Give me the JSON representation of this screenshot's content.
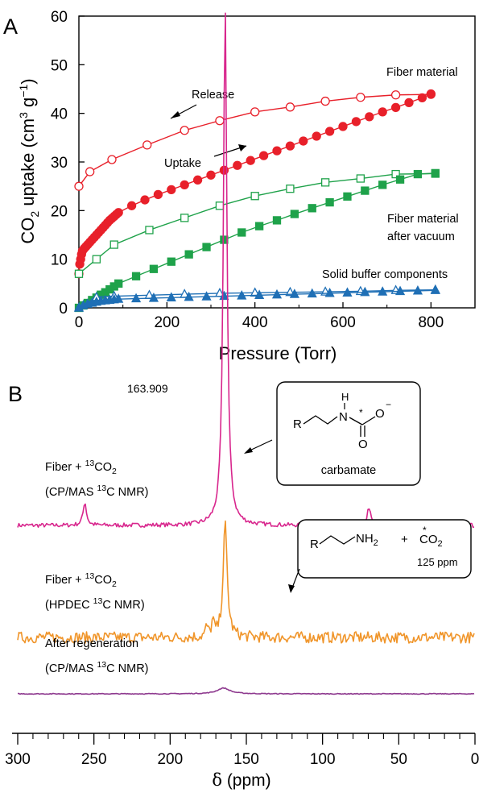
{
  "panel_a": {
    "letter": "A",
    "chart_data": {
      "type": "scatter",
      "xlabel": "Pressure (Torr)",
      "ylabel_prefix": "CO",
      "ylabel_sub": "2",
      "ylabel_mid": " uptake (cm",
      "ylabel_sup1": "3",
      "ylabel_g": " g",
      "ylabel_sup2": "−1",
      "ylabel_end": ")",
      "xlim": [
        0,
        900
      ],
      "ylim": [
        0,
        60
      ],
      "xticks": [
        0,
        200,
        400,
        600,
        800
      ],
      "yticks": [
        0,
        10,
        20,
        30,
        40,
        50,
        60
      ],
      "colors": {
        "red": "#e8202a",
        "green": "#1fa24a",
        "blue": "#1f6fb5"
      },
      "series": [
        {
          "name": "Fiber material",
          "color": "red",
          "marker": "circle",
          "filled": false,
          "curve": "release",
          "x": [
            0,
            25,
            75,
            155,
            240,
            320,
            400,
            480,
            560,
            640,
            720,
            800
          ],
          "y": [
            25,
            28,
            30.5,
            33.5,
            36.5,
            38.5,
            40.3,
            41.3,
            42.5,
            43.3,
            43.8,
            43.9
          ]
        },
        {
          "name": "Fiber material",
          "color": "red",
          "marker": "circle",
          "filled": true,
          "curve": "uptake",
          "x": [
            0,
            2,
            4,
            6,
            8,
            12,
            16,
            20,
            25,
            30,
            35,
            40,
            45,
            50,
            55,
            60,
            65,
            70,
            75,
            80,
            85,
            90,
            120,
            150,
            180,
            210,
            240,
            270,
            300,
            330,
            360,
            390,
            420,
            450,
            480,
            510,
            540,
            570,
            600,
            630,
            660,
            690,
            720,
            750,
            780,
            800
          ],
          "y": [
            7,
            9,
            10,
            11,
            11.7,
            12.2,
            12.6,
            13.0,
            13.5,
            14.0,
            14.5,
            15.0,
            15.5,
            16.0,
            16.5,
            17.0,
            17.5,
            18.0,
            18.4,
            18.8,
            19.2,
            19.6,
            21.0,
            22.2,
            23.3,
            24.3,
            25.3,
            26.3,
            27.3,
            28.3,
            29.3,
            30.3,
            31.3,
            32.3,
            33.3,
            34.3,
            35.3,
            36.3,
            37.3,
            38.3,
            39.3,
            40.3,
            41.2,
            42.2,
            43.2,
            44.0
          ]
        },
        {
          "name": "Fiber material after vacuum",
          "color": "green",
          "marker": "square",
          "filled": false,
          "curve": "release",
          "x": [
            0,
            40,
            80,
            160,
            240,
            320,
            400,
            480,
            560,
            640,
            720,
            810
          ],
          "y": [
            7,
            10,
            13,
            16,
            18.5,
            21,
            23,
            24.5,
            25.8,
            26.6,
            27.5,
            27.6
          ]
        },
        {
          "name": "Fiber material after vacuum",
          "color": "green",
          "marker": "square",
          "filled": true,
          "curve": "uptake",
          "x": [
            0,
            10,
            20,
            30,
            40,
            50,
            60,
            70,
            80,
            90,
            130,
            170,
            210,
            250,
            290,
            330,
            370,
            410,
            450,
            490,
            530,
            570,
            610,
            650,
            690,
            730,
            770,
            810
          ],
          "y": [
            0,
            0.5,
            1,
            1.6,
            2.1,
            2.7,
            3.2,
            3.8,
            4.4,
            5.0,
            6.5,
            8.0,
            9.5,
            11.0,
            12.5,
            14.0,
            15.5,
            16.8,
            18.0,
            19.3,
            20.5,
            21.7,
            22.9,
            24.1,
            25.3,
            26.4,
            27.5,
            27.7
          ]
        },
        {
          "name": "Solid buffer components",
          "color": "blue",
          "marker": "triangle",
          "filled": false,
          "curve": "release",
          "x": [
            0,
            40,
            80,
            160,
            240,
            320,
            400,
            480,
            560,
            640,
            720,
            810
          ],
          "y": [
            0,
            2.2,
            2.4,
            2.6,
            2.8,
            3.0,
            3.1,
            3.2,
            3.3,
            3.4,
            3.6,
            3.7
          ]
        },
        {
          "name": "Solid buffer components",
          "color": "blue",
          "marker": "triangle",
          "filled": true,
          "curve": "uptake",
          "x": [
            0,
            10,
            20,
            30,
            40,
            50,
            60,
            70,
            80,
            90,
            130,
            170,
            210,
            250,
            290,
            330,
            370,
            410,
            450,
            490,
            530,
            570,
            610,
            650,
            690,
            730,
            770,
            810
          ],
          "y": [
            0,
            0.5,
            0.8,
            1.0,
            1.2,
            1.4,
            1.5,
            1.6,
            1.7,
            1.8,
            1.9,
            2.0,
            2.1,
            2.2,
            2.3,
            2.4,
            2.5,
            2.6,
            2.7,
            2.8,
            2.9,
            3.0,
            3.1,
            3.2,
            3.3,
            3.4,
            3.5,
            3.6
          ]
        }
      ],
      "annotations": {
        "fiber": "Fiber material",
        "release": "Release",
        "uptake": "Uptake",
        "vacuum_1": "Fiber material",
        "vacuum_2": "after vacuum",
        "buffer": "Solid buffer components"
      }
    }
  },
  "panel_b": {
    "letter": "B",
    "chart_data": {
      "type": "line",
      "xlabel_delta": "δ",
      "xlabel_unit": " (ppm)",
      "xlim": [
        300,
        0
      ],
      "xticks": [
        300,
        250,
        200,
        150,
        100,
        50,
        0
      ],
      "xtick_labels": [
        "300",
        "250",
        "200",
        "150",
        "100",
        "50",
        "0"
      ],
      "peak_label": "163.909",
      "spectra": [
        {
          "label1_pre": "Fiber + ",
          "label1_sup": "13",
          "label1_post": "CO",
          "label1_sub": "2",
          "label2_pre": "(CP/MAS ",
          "label2_sup": "13",
          "label2_post": "C NMR)",
          "color": "#d8268d",
          "noise": 0.004,
          "peaks": [
            [
              163.9,
              1.0,
              1.4
            ],
            [
              256,
              0.045,
              1.3
            ],
            [
              69.6,
              0.035,
              1.3
            ]
          ]
        },
        {
          "label1_pre": "Fiber + ",
          "label1_sup": "13",
          "label1_post": "CO",
          "label1_sub": "2",
          "label2_pre": "(HPDEC ",
          "label2_sup": "13",
          "label2_post": "C NMR)",
          "color": "#f0952a",
          "noise": 0.05,
          "peaks": [
            [
              163.9,
              1.0,
              1.6
            ],
            [
              172,
              0.13,
              1.0
            ],
            [
              176,
              0.09,
              0.8
            ]
          ]
        },
        {
          "label1_pre": "After regeneration",
          "label1_sup": "",
          "label1_post": "",
          "label1_sub": "",
          "label2_pre": "(CP/MAS ",
          "label2_sup": "13",
          "label2_post": "C NMR)",
          "color": "#8e3a8f",
          "noise": 0.012,
          "peaks": [
            [
              165,
              0.18,
              5
            ]
          ]
        }
      ],
      "inset_carbamate": {
        "r": "R",
        "h": "H",
        "n": "N",
        "o_minus": "O",
        "minus": "−",
        "o": "O",
        "star": "*",
        "caption": "carbamate"
      },
      "inset_amine": {
        "r": "R",
        "nh": "NH",
        "nh_sub": "2",
        "plus": "+",
        "co": "CO",
        "co_sub": "2",
        "star": "*",
        "ppm": "125 ppm"
      }
    }
  }
}
